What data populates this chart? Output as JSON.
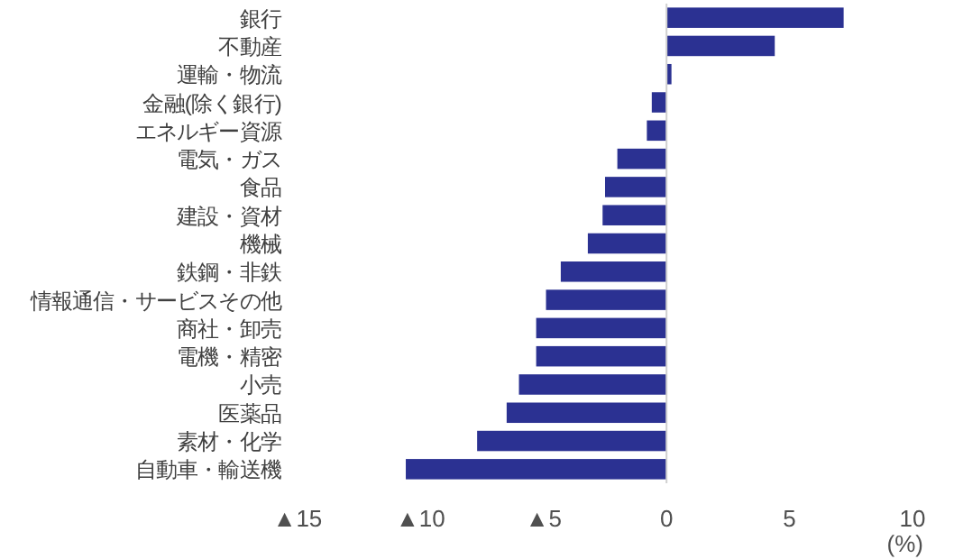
{
  "chart_data": {
    "type": "bar",
    "orientation": "horizontal",
    "xlabel": "(%)",
    "color": "#2b3192",
    "categories": [
      "銀行",
      "不動産",
      "運輸・物流",
      "金融(除く銀行)",
      "エネルギー資源",
      "電気・ガス",
      "食品",
      "建設・資材",
      "機械",
      "鉄鋼・非鉄",
      "情報通信・サービスその他",
      "商社・卸売",
      "電機・精密",
      "小売",
      "医薬品",
      "素材・化学",
      "自動車・輸送機"
    ],
    "values": [
      7.2,
      4.4,
      0.2,
      -0.6,
      -0.8,
      -2.0,
      -2.5,
      -2.6,
      -3.2,
      -4.3,
      -4.9,
      -5.3,
      -5.3,
      -6.0,
      -6.5,
      -7.7,
      -10.6
    ],
    "xlim": [
      -15,
      10
    ],
    "xticks": [
      {
        "value": -15,
        "label": "▲15"
      },
      {
        "value": -10,
        "label": "▲10"
      },
      {
        "value": -5,
        "label": "▲5"
      },
      0,
      5,
      10
    ]
  }
}
